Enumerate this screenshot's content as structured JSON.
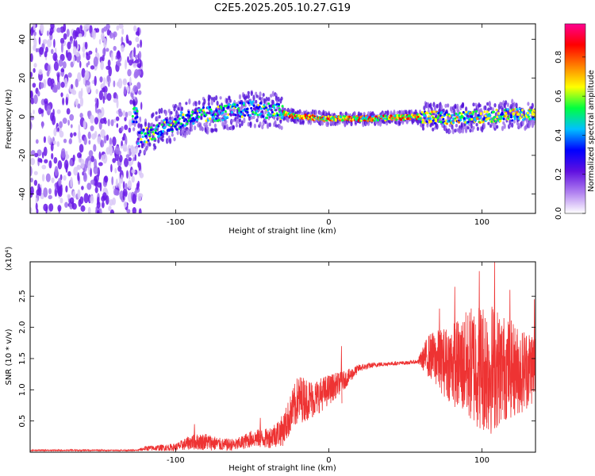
{
  "page": {
    "title": "C2E5.2025.205.10.27.G19"
  },
  "chart_data": [
    {
      "type": "heatmap",
      "xlabel": "Height of straight line (km)",
      "ylabel": "Frequency (Hz)",
      "xlim": [
        -195,
        135
      ],
      "ylim": [
        -50,
        48
      ],
      "x_ticks": [
        -100,
        0,
        100
      ],
      "y_ticks": [
        -40,
        -20,
        0,
        20,
        40
      ],
      "colorbar": {
        "label": "Normalized spectral amplitude",
        "range": [
          0,
          0.97
        ],
        "ticks": [
          0.0,
          0.2,
          0.4,
          0.6,
          0.8
        ],
        "colors": [
          "#ffffff",
          "#b080f0",
          "#6010e0",
          "#0000ff",
          "#00c0ff",
          "#00ff40",
          "#ffff00",
          "#ff8000",
          "#ff0000",
          "#ff0090"
        ]
      },
      "ridge": [
        {
          "x": -125,
          "y": -12
        },
        {
          "x": -110,
          "y": -6
        },
        {
          "x": -90,
          "y": 0
        },
        {
          "x": -70,
          "y": 2
        },
        {
          "x": -50,
          "y": 4
        },
        {
          "x": -35,
          "y": 3
        },
        {
          "x": -20,
          "y": 0
        },
        {
          "x": 0,
          "y": -1
        },
        {
          "x": 30,
          "y": -1
        },
        {
          "x": 60,
          "y": 0
        },
        {
          "x": 80,
          "y": -1
        },
        {
          "x": 100,
          "y": 0
        },
        {
          "x": 120,
          "y": 1
        },
        {
          "x": 135,
          "y": 1
        }
      ],
      "noise_region_x": [
        -195,
        -122
      ]
    },
    {
      "type": "line",
      "xlabel": "Height of straight line (km)",
      "ylabel": "SNR (10 * v/v)",
      "y_multiplier": "(x10⁴)",
      "xlim": [
        -195,
        135
      ],
      "ylim": [
        0,
        3.05
      ],
      "x_ticks": [
        -100,
        0,
        100
      ],
      "y_ticks": [
        0.5,
        1.0,
        1.5,
        2.0,
        2.5
      ],
      "y_tick_labels": [
        "0.5",
        "1.0",
        "1.5",
        "2.0",
        "2.5"
      ],
      "series": [
        {
          "color": "#ee3333",
          "envelope": [
            {
              "x": -195,
              "mean": 0.03,
              "amp": 0.01
            },
            {
              "x": -125,
              "mean": 0.03,
              "amp": 0.01
            },
            {
              "x": -120,
              "mean": 0.06,
              "amp": 0.04
            },
            {
              "x": -100,
              "mean": 0.08,
              "amp": 0.06
            },
            {
              "x": -90,
              "mean": 0.16,
              "amp": 0.12
            },
            {
              "x": -80,
              "mean": 0.17,
              "amp": 0.14
            },
            {
              "x": -70,
              "mean": 0.12,
              "amp": 0.1
            },
            {
              "x": -60,
              "mean": 0.12,
              "amp": 0.1
            },
            {
              "x": -50,
              "mean": 0.22,
              "amp": 0.14
            },
            {
              "x": -40,
              "mean": 0.22,
              "amp": 0.16
            },
            {
              "x": -30,
              "mean": 0.35,
              "amp": 0.25
            },
            {
              "x": -20,
              "mean": 0.85,
              "amp": 0.4
            },
            {
              "x": -10,
              "mean": 0.85,
              "amp": 0.3
            },
            {
              "x": 0,
              "mean": 1.0,
              "amp": 0.25
            },
            {
              "x": 10,
              "mean": 1.15,
              "amp": 0.15
            },
            {
              "x": 20,
              "mean": 1.35,
              "amp": 0.06
            },
            {
              "x": 30,
              "mean": 1.4,
              "amp": 0.04
            },
            {
              "x": 40,
              "mean": 1.42,
              "amp": 0.03
            },
            {
              "x": 50,
              "mean": 1.43,
              "amp": 0.03
            },
            {
              "x": 58,
              "mean": 1.45,
              "amp": 0.03
            },
            {
              "x": 65,
              "mean": 1.55,
              "amp": 0.35
            },
            {
              "x": 75,
              "mean": 1.45,
              "amp": 0.55
            },
            {
              "x": 85,
              "mean": 1.4,
              "amp": 0.75
            },
            {
              "x": 95,
              "mean": 1.4,
              "amp": 1.0
            },
            {
              "x": 105,
              "mean": 1.35,
              "amp": 1.1
            },
            {
              "x": 115,
              "mean": 1.35,
              "amp": 0.85
            },
            {
              "x": 125,
              "mean": 1.3,
              "amp": 0.7
            },
            {
              "x": 135,
              "mean": 1.4,
              "amp": 0.6
            }
          ],
          "spikes": [
            {
              "x": 8,
              "y": 1.7
            },
            {
              "x": 98,
              "y": 2.9
            },
            {
              "x": 108,
              "y": 3.05
            },
            {
              "x": 82,
              "y": 2.65
            },
            {
              "x": 72,
              "y": 2.3
            },
            {
              "x": 118,
              "y": 2.6
            },
            {
              "x": 134,
              "y": 2.45
            },
            {
              "x": -18,
              "y": 1.1
            },
            {
              "x": -88,
              "y": 0.45
            },
            {
              "x": -45,
              "y": 0.55
            }
          ]
        }
      ]
    }
  ]
}
